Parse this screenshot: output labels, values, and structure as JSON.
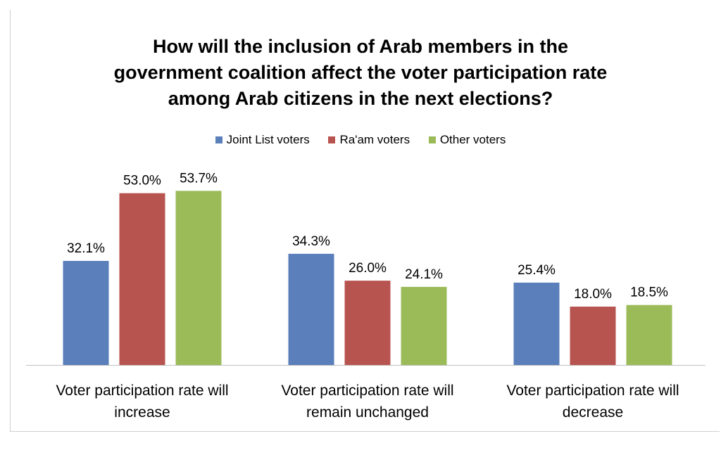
{
  "chart_data": {
    "type": "bar",
    "title_lines": [
      "How will the inclusion of Arab members in the",
      "government coalition affect the voter participation rate",
      "among Arab citizens in the next elections?"
    ],
    "categories": [
      [
        "Voter participation rate will",
        "increase"
      ],
      [
        "Voter participation rate will",
        "remain unchanged"
      ],
      [
        "Voter participation rate will",
        "decrease"
      ]
    ],
    "series": [
      {
        "name": "Joint List voters",
        "color": "#5a7fbb",
        "values": [
          32.1,
          34.3,
          25.4
        ],
        "labels": [
          "32.1%",
          "34.3%",
          "25.4%"
        ]
      },
      {
        "name": "Ra'am voters",
        "color": "#b85450",
        "values": [
          53.0,
          26.0,
          18.0
        ],
        "labels": [
          "53.0%",
          "26.0%",
          "18.0%"
        ]
      },
      {
        "name": "Other voters",
        "color": "#9bbb59",
        "values": [
          53.7,
          24.1,
          18.5
        ],
        "labels": [
          "53.7%",
          "24.1%",
          "18.5%"
        ]
      }
    ],
    "ylim": [
      0,
      55
    ],
    "grid": false,
    "legend_position": "top"
  }
}
